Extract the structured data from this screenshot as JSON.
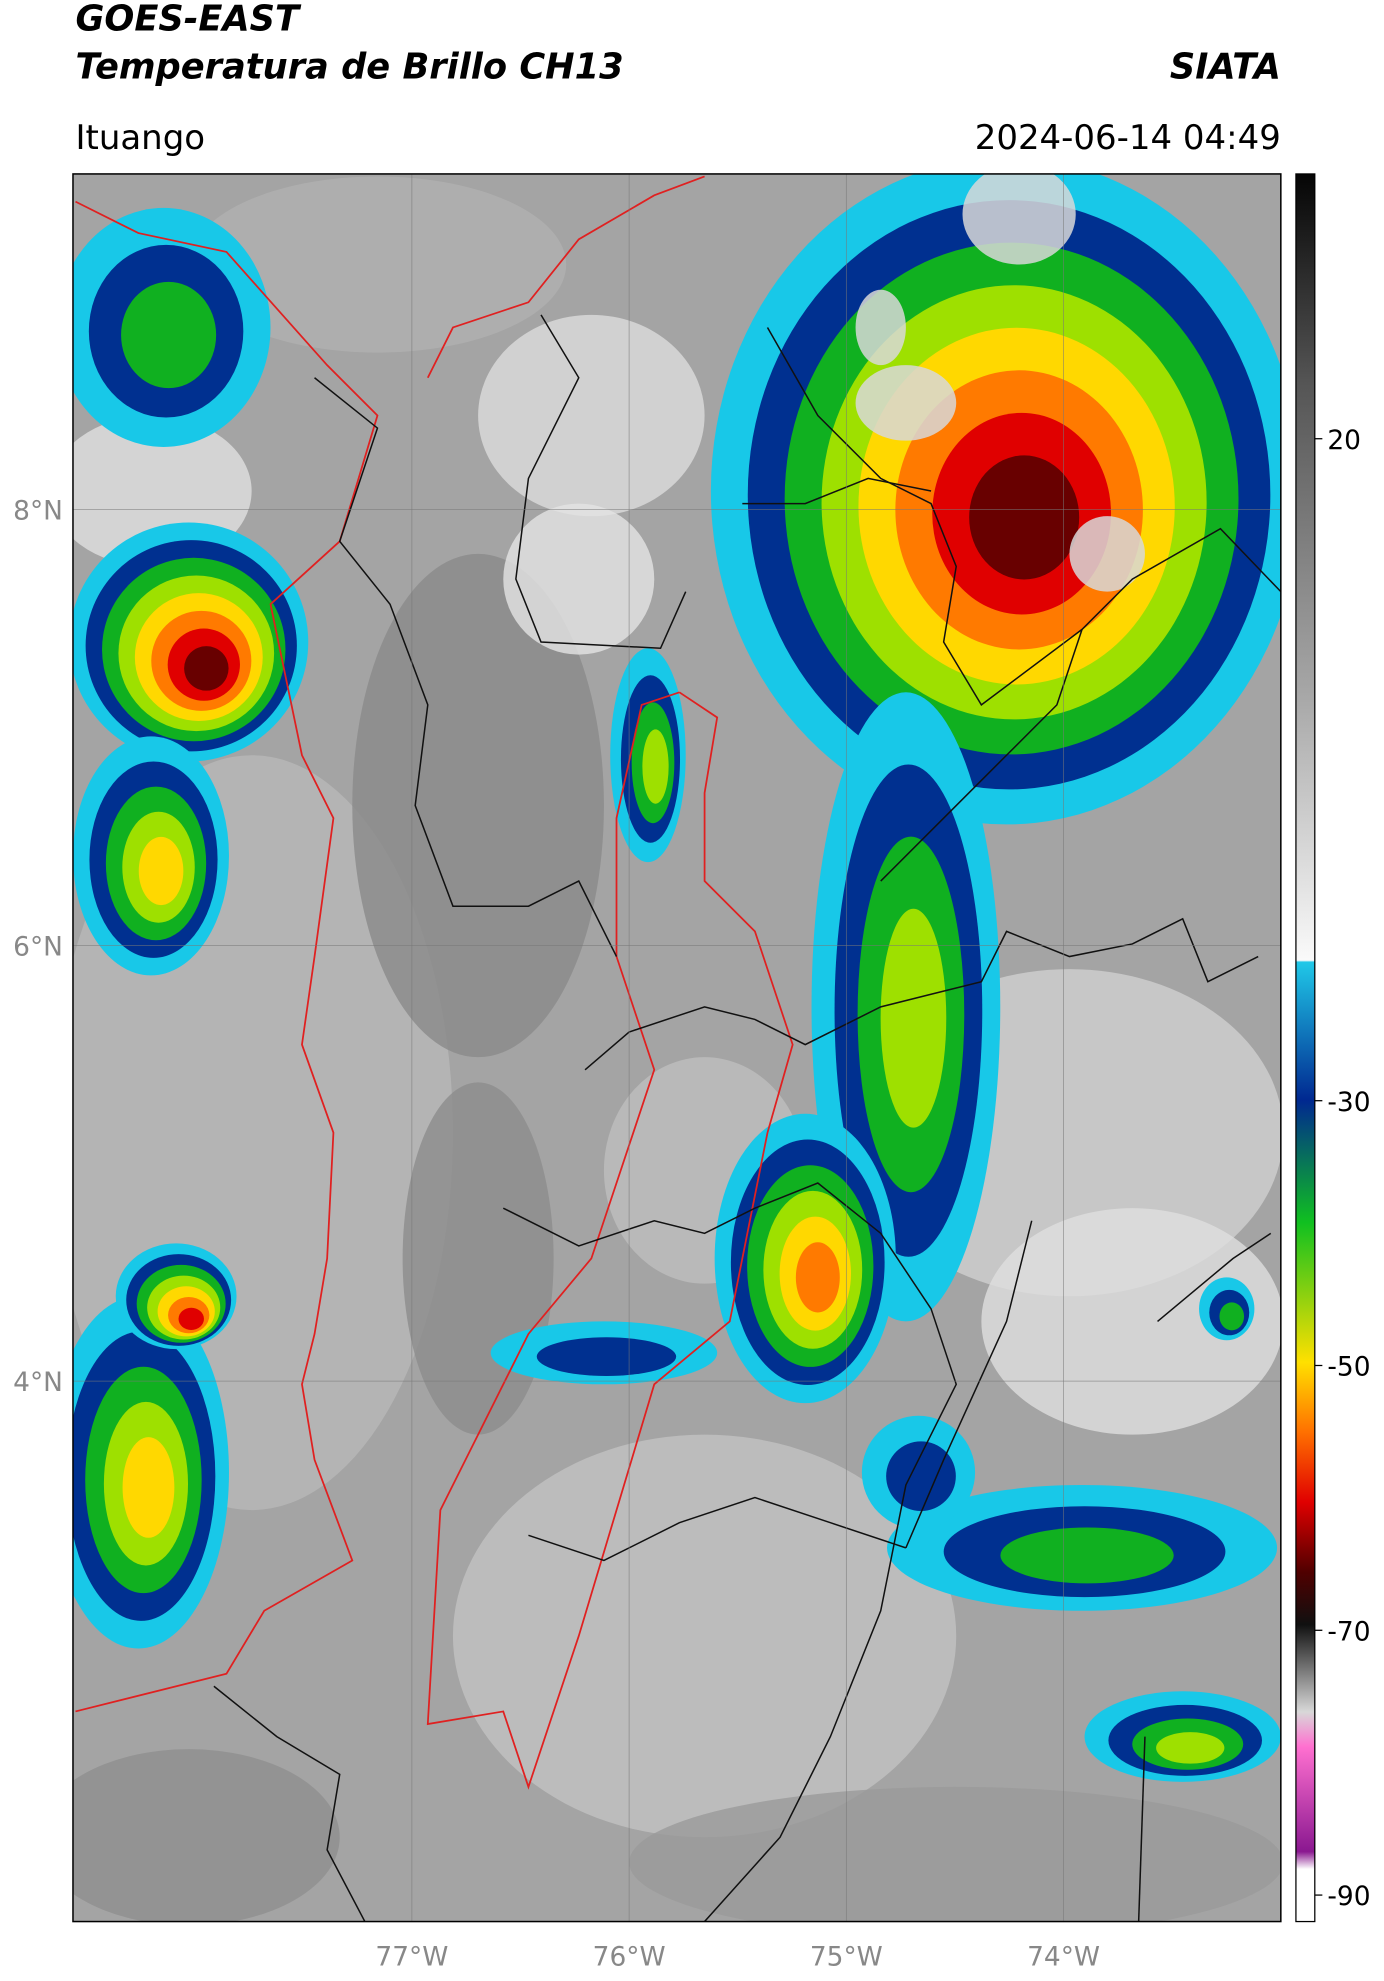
{
  "header": {
    "title": "GOES-EAST",
    "subtitle": "Temperatura de Brillo CH13",
    "organization": "SIATA",
    "location": "Ituango",
    "datetime": "2024-06-14 04:49"
  },
  "map": {
    "xlim": [
      -78.56,
      -73.0
    ],
    "ylim": [
      1.52,
      9.54
    ],
    "xticks": [
      {
        "value": -77,
        "label": "77°W"
      },
      {
        "value": -76,
        "label": "76°W"
      },
      {
        "value": -75,
        "label": "75°W"
      },
      {
        "value": -74,
        "label": "74°W"
      }
    ],
    "yticks": [
      {
        "value": 8,
        "label": "8°N"
      },
      {
        "value": 6,
        "label": "6°N"
      },
      {
        "value": 4,
        "label": "4°N"
      }
    ]
  },
  "colorbar": {
    "lim": [
      -92,
      40
    ],
    "ticks": [
      20,
      -30,
      -50,
      -70,
      -90
    ]
  }
}
